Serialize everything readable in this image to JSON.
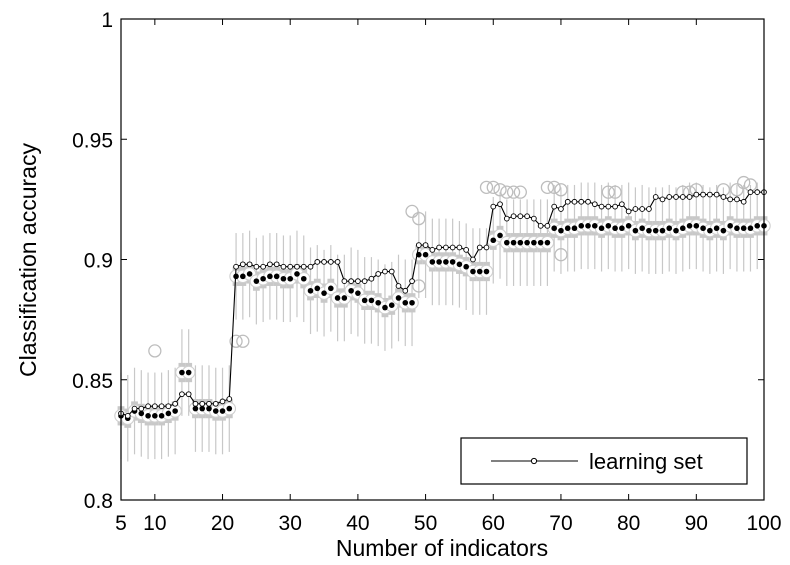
{
  "chart_data": {
    "type": "line",
    "xlabel": "Number of indicators",
    "ylabel": "Classification accuracy",
    "xlim": [
      5,
      100
    ],
    "ylim": [
      0.8,
      1.0
    ],
    "xticks": [
      5,
      10,
      20,
      30,
      40,
      50,
      60,
      70,
      80,
      90,
      100
    ],
    "xtick_labels": [
      "5",
      "10",
      "20",
      "30",
      "40",
      "50",
      "60",
      "70",
      "80",
      "90",
      "100"
    ],
    "yticks": [
      0.8,
      0.85,
      0.9,
      0.95,
      1.0
    ],
    "ytick_labels": [
      "0.8",
      "0.85",
      "0.9",
      "0.95",
      "1"
    ],
    "grid": false,
    "legend": {
      "position": "bottom-right",
      "entries": [
        "learning set"
      ]
    },
    "x": [
      5,
      6,
      7,
      8,
      9,
      10,
      11,
      12,
      13,
      14,
      15,
      16,
      17,
      18,
      19,
      20,
      21,
      22,
      23,
      24,
      25,
      26,
      27,
      28,
      29,
      30,
      31,
      32,
      33,
      34,
      35,
      36,
      37,
      38,
      39,
      40,
      41,
      42,
      43,
      44,
      45,
      46,
      47,
      48,
      49,
      50,
      51,
      52,
      53,
      54,
      55,
      56,
      57,
      58,
      59,
      60,
      61,
      62,
      63,
      64,
      65,
      66,
      67,
      68,
      69,
      70,
      71,
      72,
      73,
      74,
      75,
      76,
      77,
      78,
      79,
      80,
      81,
      82,
      83,
      84,
      85,
      86,
      87,
      88,
      89,
      90,
      91,
      92,
      93,
      94,
      95,
      96,
      97,
      98,
      99,
      100
    ],
    "series": [
      {
        "name": "learning set",
        "style": "line-marker",
        "color": "#000000",
        "values": [
          0.836,
          0.835,
          0.838,
          0.838,
          0.839,
          0.839,
          0.839,
          0.839,
          0.84,
          0.844,
          0.844,
          0.84,
          0.84,
          0.84,
          0.84,
          0.841,
          0.842,
          0.897,
          0.898,
          0.898,
          0.897,
          0.897,
          0.898,
          0.898,
          0.897,
          0.897,
          0.897,
          0.897,
          0.897,
          0.899,
          0.899,
          0.899,
          0.899,
          0.891,
          0.891,
          0.891,
          0.891,
          0.892,
          0.894,
          0.895,
          0.895,
          0.889,
          0.887,
          0.891,
          0.906,
          0.906,
          0.904,
          0.905,
          0.905,
          0.905,
          0.905,
          0.904,
          0.9,
          0.905,
          0.905,
          0.922,
          0.923,
          0.917,
          0.918,
          0.918,
          0.918,
          0.917,
          0.914,
          0.914,
          0.922,
          0.921,
          0.924,
          0.924,
          0.924,
          0.924,
          0.923,
          0.922,
          0.922,
          0.922,
          0.923,
          0.92,
          0.921,
          0.921,
          0.921,
          0.926,
          0.925,
          0.926,
          0.926,
          0.926,
          0.926,
          0.927,
          0.927,
          0.927,
          0.927,
          0.926,
          0.925,
          0.925,
          0.924,
          0.928,
          0.928,
          0.928
        ]
      },
      {
        "name": "",
        "style": "dots-with-open-circles",
        "color": "#000000",
        "values": [
          0.835,
          0.834,
          0.837,
          0.836,
          0.835,
          0.835,
          0.835,
          0.836,
          0.837,
          0.853,
          0.853,
          0.838,
          0.838,
          0.838,
          0.837,
          0.837,
          0.838,
          0.893,
          0.893,
          0.894,
          0.891,
          0.892,
          0.893,
          0.893,
          0.892,
          0.892,
          0.894,
          0.892,
          0.887,
          0.888,
          0.886,
          0.888,
          0.884,
          0.884,
          0.887,
          0.886,
          0.883,
          0.883,
          0.882,
          0.88,
          0.881,
          0.884,
          0.882,
          0.882,
          0.902,
          0.902,
          0.899,
          0.899,
          0.899,
          0.899,
          0.898,
          0.897,
          0.895,
          0.895,
          0.895,
          0.908,
          0.91,
          0.907,
          0.907,
          0.907,
          0.907,
          0.907,
          0.907,
          0.907,
          0.913,
          0.912,
          0.913,
          0.913,
          0.914,
          0.914,
          0.914,
          0.913,
          0.914,
          0.913,
          0.913,
          0.914,
          0.912,
          0.913,
          0.912,
          0.912,
          0.912,
          0.913,
          0.912,
          0.913,
          0.914,
          0.914,
          0.913,
          0.912,
          0.913,
          0.912,
          0.914,
          0.913,
          0.913,
          0.913,
          0.914,
          0.914
        ]
      },
      {
        "name": "",
        "style": "gray-boxes-and-whiskers",
        "color": "#c8c8c8",
        "values": [
          0.835,
          0.834,
          0.837,
          0.836,
          0.835,
          0.835,
          0.835,
          0.836,
          0.837,
          0.853,
          0.853,
          0.838,
          0.838,
          0.838,
          0.837,
          0.837,
          0.838,
          0.893,
          0.893,
          0.894,
          0.891,
          0.892,
          0.893,
          0.893,
          0.892,
          0.892,
          0.894,
          0.892,
          0.887,
          0.888,
          0.886,
          0.888,
          0.884,
          0.884,
          0.887,
          0.886,
          0.883,
          0.883,
          0.882,
          0.88,
          0.881,
          0.884,
          0.882,
          0.882,
          0.902,
          0.902,
          0.899,
          0.899,
          0.899,
          0.899,
          0.898,
          0.897,
          0.895,
          0.895,
          0.895,
          0.908,
          0.91,
          0.907,
          0.907,
          0.907,
          0.907,
          0.907,
          0.907,
          0.907,
          0.913,
          0.912,
          0.913,
          0.913,
          0.914,
          0.914,
          0.914,
          0.913,
          0.914,
          0.913,
          0.913,
          0.914,
          0.912,
          0.913,
          0.912,
          0.912,
          0.912,
          0.913,
          0.912,
          0.913,
          0.914,
          0.914,
          0.913,
          0.912,
          0.913,
          0.912,
          0.914,
          0.913,
          0.913,
          0.913,
          0.914,
          0.914
        ]
      }
    ],
    "outliers": [
      {
        "x": 10,
        "y": 0.862
      },
      {
        "x": 22,
        "y": 0.866
      },
      {
        "x": 23,
        "y": 0.866
      },
      {
        "x": 48,
        "y": 0.92
      },
      {
        "x": 49,
        "y": 0.917
      },
      {
        "x": 59,
        "y": 0.93
      },
      {
        "x": 60,
        "y": 0.93
      },
      {
        "x": 61,
        "y": 0.929
      },
      {
        "x": 62,
        "y": 0.928
      },
      {
        "x": 63,
        "y": 0.928
      },
      {
        "x": 64,
        "y": 0.928
      },
      {
        "x": 68,
        "y": 0.93
      },
      {
        "x": 69,
        "y": 0.93
      },
      {
        "x": 70,
        "y": 0.929
      },
      {
        "x": 77,
        "y": 0.928
      },
      {
        "x": 78,
        "y": 0.928
      },
      {
        "x": 88,
        "y": 0.928
      },
      {
        "x": 89,
        "y": 0.928
      },
      {
        "x": 90,
        "y": 0.929
      },
      {
        "x": 94,
        "y": 0.929
      },
      {
        "x": 96,
        "y": 0.929
      },
      {
        "x": 97,
        "y": 0.932
      },
      {
        "x": 98,
        "y": 0.931
      },
      {
        "x": 70,
        "y": 0.902
      },
      {
        "x": 49,
        "y": 0.889
      }
    ]
  }
}
